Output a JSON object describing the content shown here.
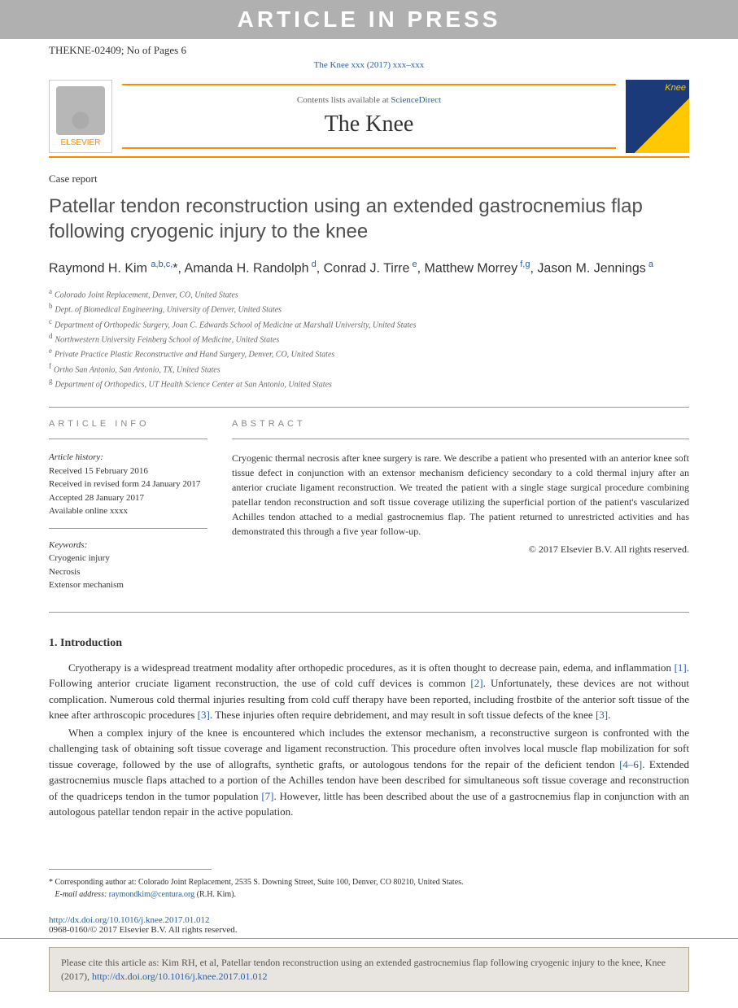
{
  "banner": "ARTICLE IN PRESS",
  "header_id": "THEKNE-02409; No of Pages 6",
  "doi_top": "The Knee xxx (2017) xxx–xxx",
  "journal_banner": {
    "elsevier": "ELSEVIER",
    "contents_prefix": "Contents lists available at ",
    "contents_link": "ScienceDirect",
    "title": "The Knee",
    "cover_label": "Knee"
  },
  "case_label": "Case report",
  "title": "Patellar tendon reconstruction using an extended gastrocnemius flap following cryogenic injury to the knee",
  "authors_html": "Raymond H. Kim <sup>a,b,c,</sup><span class='corr'>*</span>, Amanda H. Randolph<sup> d</sup>, Conrad J. Tirre<sup> e</sup>, Matthew Morrey<sup> f,g</sup>, Jason M. Jennings<sup> a</sup>",
  "affiliations": [
    {
      "k": "a",
      "t": "Colorado Joint Replacement, Denver, CO, United States"
    },
    {
      "k": "b",
      "t": "Dept. of Biomedical Engineering, University of Denver, United States"
    },
    {
      "k": "c",
      "t": "Department of Orthopedic Surgery, Joan C. Edwards School of Medicine at Marshall University, United States"
    },
    {
      "k": "d",
      "t": "Northwestern University Feinberg School of Medicine, United States"
    },
    {
      "k": "e",
      "t": "Private Practice Plastic Reconstructive and Hand Surgery, Denver, CO, United States"
    },
    {
      "k": "f",
      "t": "Ortho San Antonio, San Antonio, TX, United States"
    },
    {
      "k": "g",
      "t": "Department of Orthopedics, UT Health Science Center at San Antonio, United States"
    }
  ],
  "info": {
    "label": "ARTICLE INFO",
    "history_heading": "Article history:",
    "history": [
      "Received 15 February 2016",
      "Received in revised form 24 January 2017",
      "Accepted 28 January 2017",
      "Available online xxxx"
    ],
    "keywords_heading": "Keywords:",
    "keywords": [
      "Cryogenic injury",
      "Necrosis",
      "Extensor mechanism"
    ]
  },
  "abstract": {
    "label": "ABSTRACT",
    "text": "Cryogenic thermal necrosis after knee surgery is rare. We describe a patient who presented with an anterior knee soft tissue defect in conjunction with an extensor mechanism deficiency secondary to a cold thermal injury after an anterior cruciate ligament reconstruction. We treated the patient with a single stage surgical procedure combining patellar tendon reconstruction and soft tissue coverage utilizing the superficial portion of the patient's vascularized Achilles tendon attached to a medial gastrocnemius flap. The patient returned to unrestricted activities and has demonstrated this through a five year follow-up.",
    "copyright": "© 2017 Elsevier B.V. All rights reserved."
  },
  "section1": {
    "heading": "1. Introduction",
    "p1_a": "Cryotherapy is a widespread treatment modality after orthopedic procedures, as it is often thought to decrease pain, edema, and inflammation ",
    "p1_r1": "[1]",
    "p1_b": ". Following anterior cruciate ligament reconstruction, the use of cold cuff devices is common ",
    "p1_r2": "[2]",
    "p1_c": ". Unfortunately, these devices are not without complication. Numerous cold thermal injuries resulting from cold cuff therapy have been reported, including frostbite of the anterior soft tissue of the knee after arthroscopic procedures ",
    "p1_r3": "[3]",
    "p1_d": ". These injuries often require debridement, and may result in soft tissue defects of the knee ",
    "p1_r4": "[3]",
    "p1_e": ".",
    "p2_a": "When a complex injury of the knee is encountered which includes the extensor mechanism, a reconstructive surgeon is confronted with the challenging task of obtaining soft tissue coverage and ligament reconstruction. This procedure often involves local muscle flap mobilization for soft tissue coverage, followed by the use of allografts, synthetic grafts, or autologous tendons for the repair of the deficient tendon ",
    "p2_r1": "[4–6]",
    "p2_b": ". Extended gastrocnemius muscle flaps attached to a portion of the Achilles tendon have been described for simultaneous soft tissue coverage and reconstruction of the quadriceps tendon in the tumor population ",
    "p2_r2": "[7]",
    "p2_c": ". However, little has been described about the use of a gastrocnemius flap in conjunction with an autologous patellar tendon repair in the active population."
  },
  "corresponding": {
    "star": "*",
    "line1": " Corresponding author at: Colorado Joint Replacement, 2535 S. Downing Street, Suite 100, Denver, CO 80210, United States.",
    "email_label": "E-mail address: ",
    "email": "raymondkim@centura.org",
    "email_suffix": " (R.H. Kim)."
  },
  "bottom": {
    "doi": "http://dx.doi.org/10.1016/j.knee.2017.01.012",
    "copy": "0968-0160/© 2017 Elsevier B.V. All rights reserved."
  },
  "cite": {
    "text": "Please cite this article as: Kim RH, et al, Patellar tendon reconstruction using an extended gastrocnemius flap following cryogenic injury to the knee, Knee (2017), ",
    "link": "http://dx.doi.org/10.1016/j.knee.2017.01.012"
  },
  "colors": {
    "link": "#2a5fa8",
    "orange": "#ff8c00",
    "banner_bg": "#b0b0b0"
  }
}
